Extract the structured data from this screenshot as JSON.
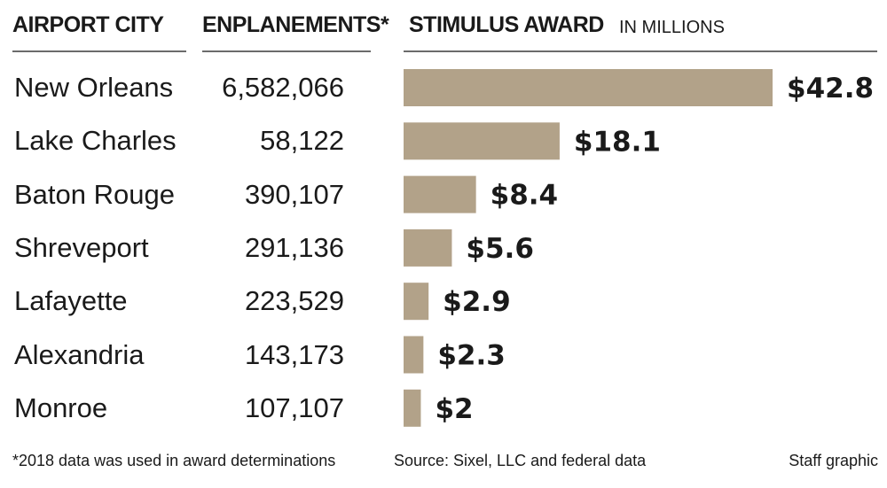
{
  "header": {
    "city_label": "AIRPORT CITY",
    "enplanements_label": "ENPLANEMENTS*",
    "award_label": "STIMULUS AWARD",
    "award_unit": "IN MILLIONS"
  },
  "chart_data": {
    "type": "bar",
    "orientation": "horizontal",
    "categories": [
      "New Orleans",
      "Lake Charles",
      "Baton Rouge",
      "Shreveport",
      "Lafayette",
      "Alexandria",
      "Monroe"
    ],
    "enplanements": [
      "6,582,066",
      "58,122",
      "390,107",
      "291,136",
      "223,529",
      "143,173",
      "107,107"
    ],
    "values": [
      42.8,
      18.1,
      8.4,
      5.6,
      2.9,
      2.3,
      2
    ],
    "value_labels": [
      "$42.8",
      "$18.1",
      "$8.4",
      "$5.6",
      "$2.9",
      "$2.3",
      "$2"
    ],
    "grid": false,
    "bar_color": "#b2a289"
  },
  "footer": {
    "note": "*2018 data was used in award determinations",
    "source": "Source: Sixel, LLC and federal data",
    "credit": "Staff graphic"
  }
}
